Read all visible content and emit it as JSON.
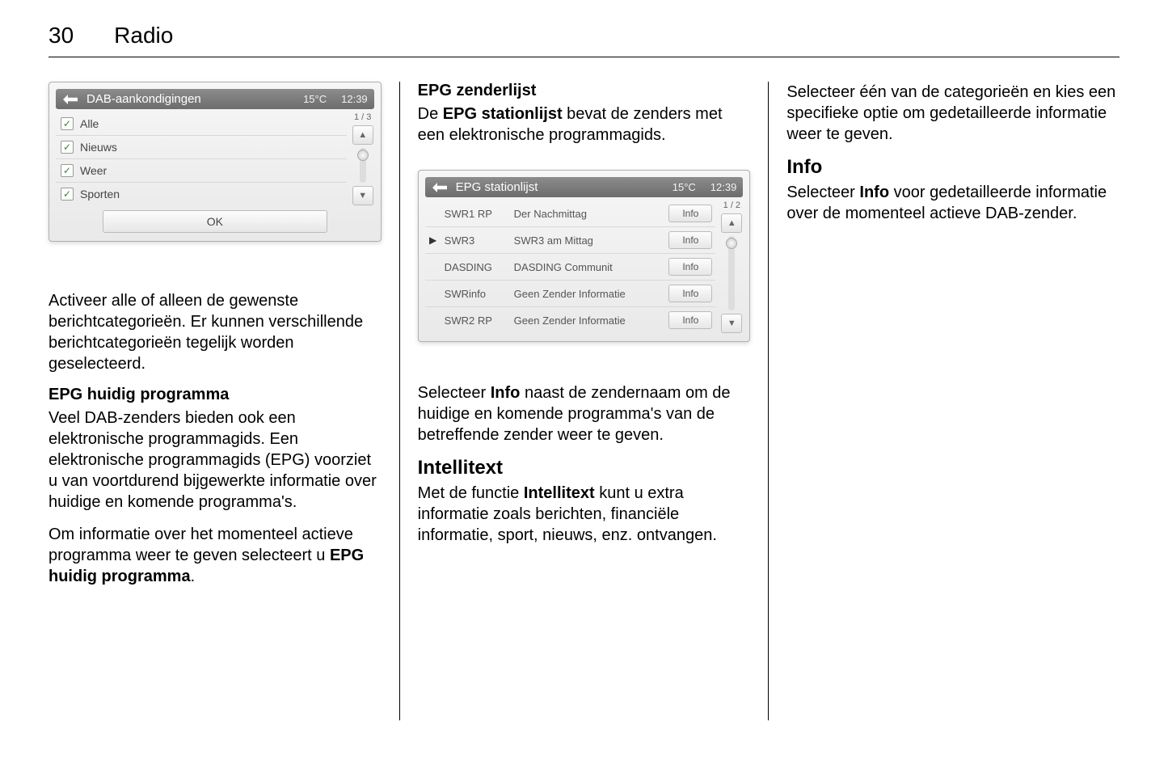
{
  "page": {
    "number": "30",
    "title": "Radio"
  },
  "col1": {
    "panel1": {
      "title": "DAB-aankondigingen",
      "temp": "15°C",
      "time": "12:39",
      "page_indicator": "1 / 3",
      "items": [
        {
          "label": "Alle",
          "checked": true
        },
        {
          "label": "Nieuws",
          "checked": true
        },
        {
          "label": "Weer",
          "checked": true
        },
        {
          "label": "Sporten",
          "checked": true
        }
      ],
      "ok_label": "OK"
    },
    "p1": "Activeer alle of alleen de gewenste berichtcategorieën. Er kunnen verschillende berichtcategorieën tegelijk worden geselecteerd.",
    "h1": "EPG huidig programma",
    "p2": "Veel DAB-zenders bieden ook een elektronische programmagids. Een elektronische programmagids (EPG) voorziet u van voortdurend bijgewerkte informatie over huidige en komende programma's.",
    "p3_a": "Om informatie over het momenteel actieve programma weer te geven selecteert u ",
    "p3_b": "EPG huidig programma",
    "p3_c": "."
  },
  "col2": {
    "h1": "EPG zenderlijst",
    "p1_a": "De ",
    "p1_b": "EPG stationlijst",
    "p1_c": " bevat de zenders met een elektronische programmagids.",
    "panel2": {
      "title": "EPG stationlijst",
      "temp": "15°C",
      "time": "12:39",
      "page_indicator": "1 / 2",
      "info_label": "Info",
      "rows": [
        {
          "station": "SWR1 RP",
          "program": "Der Nachmittag",
          "current": false
        },
        {
          "station": "SWR3",
          "program": "SWR3 am Mittag",
          "current": true
        },
        {
          "station": "DASDING",
          "program": "DASDING Communit",
          "current": false
        },
        {
          "station": "SWRinfo",
          "program": "Geen Zender Informatie",
          "current": false
        },
        {
          "station": "SWR2 RP",
          "program": "Geen Zender Informatie",
          "current": false
        }
      ]
    },
    "p2_a": "Selecteer ",
    "p2_b": "Info",
    "p2_c": " naast de zendernaam om de huidige en komende programma's van de betreffende zender weer te geven.",
    "h2": "Intellitext",
    "p3_a": "Met de functie ",
    "p3_b": "Intellitext",
    "p3_c": " kunt u extra informatie zoals berichten, financiële informatie, sport, nieuws, enz. ontvangen."
  },
  "col3": {
    "p1": "Selecteer één van de categorieën en kies een specifieke optie om gedetailleerde informatie weer te geven.",
    "h1": "Info",
    "p2_a": "Selecteer ",
    "p2_b": "Info",
    "p2_c": " voor gedetailleerde informatie over de momenteel actieve DAB-zender."
  }
}
